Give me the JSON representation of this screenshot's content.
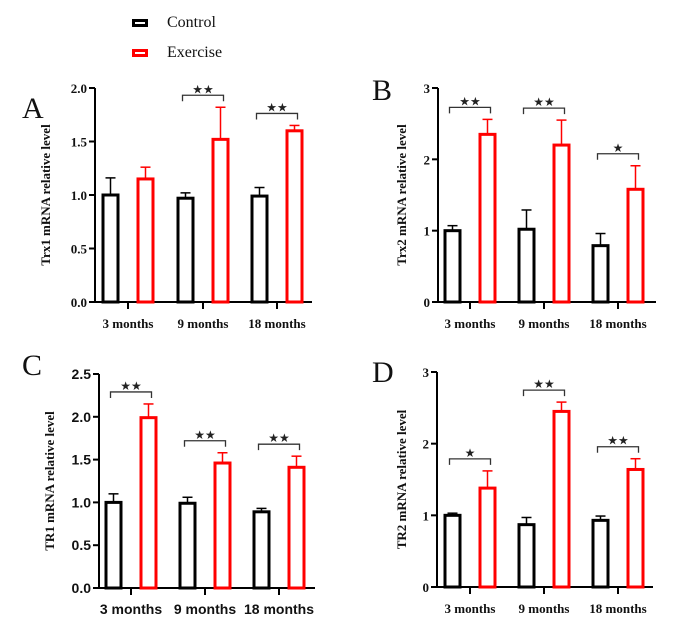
{
  "legend": {
    "items": [
      {
        "label": "Control",
        "color": "#000000"
      },
      {
        "label": "Exercise",
        "color": "#ff0000"
      }
    ]
  },
  "colors": {
    "control": "#000000",
    "exercise": "#ff0000",
    "bracket": "#333333"
  },
  "chart_data": [
    {
      "type": "bar",
      "panel": "A",
      "ylabel": "Trx1 mRNA relative level",
      "xlabel": "",
      "categories": [
        "3 months",
        "9 months",
        "18 months"
      ],
      "ylim": [
        0,
        2.0
      ],
      "yticks": [
        0.0,
        0.5,
        1.0,
        1.5,
        2.0
      ],
      "ytick_labels": [
        "0.0",
        "0.5",
        "1.0",
        "1.5",
        "2.0"
      ],
      "tick_font": "serif",
      "series": [
        {
          "name": "Control",
          "values": [
            1.0,
            0.97,
            0.99
          ],
          "error_upper": [
            1.16,
            1.02,
            1.07
          ]
        },
        {
          "name": "Exercise",
          "values": [
            1.15,
            1.52,
            1.6
          ],
          "error_upper": [
            1.26,
            1.82,
            1.65
          ]
        }
      ],
      "significance": [
        "",
        "**",
        "**"
      ],
      "grid": false
    },
    {
      "type": "bar",
      "panel": "B",
      "ylabel": "Trx2 mRNA relative level",
      "xlabel": "",
      "categories": [
        "3 months",
        "9 months",
        "18 months"
      ],
      "ylim": [
        0,
        3
      ],
      "yticks": [
        0,
        1,
        2,
        3
      ],
      "ytick_labels": [
        "0",
        "1",
        "2",
        "3"
      ],
      "tick_font": "serif",
      "series": [
        {
          "name": "Control",
          "values": [
            1.0,
            1.02,
            0.79
          ],
          "error_upper": [
            1.07,
            1.29,
            0.96
          ]
        },
        {
          "name": "Exercise",
          "values": [
            2.35,
            2.2,
            1.58
          ],
          "error_upper": [
            2.56,
            2.55,
            1.91
          ]
        }
      ],
      "significance": [
        "**",
        "**",
        "*"
      ],
      "grid": false
    },
    {
      "type": "bar",
      "panel": "C",
      "ylabel": "TR1 mRNA relative level",
      "xlabel": "",
      "categories": [
        "3 months",
        "9 months",
        "18 months"
      ],
      "ylim": [
        0,
        2.5
      ],
      "yticks": [
        0.0,
        0.5,
        1.0,
        1.5,
        2.0,
        2.5
      ],
      "ytick_labels": [
        "0.0",
        "0.5",
        "1.0",
        "1.5",
        "2.0",
        "2.5"
      ],
      "tick_font": "sans",
      "series": [
        {
          "name": "Control",
          "values": [
            1.0,
            0.99,
            0.89
          ],
          "error_upper": [
            1.1,
            1.06,
            0.93
          ]
        },
        {
          "name": "Exercise",
          "values": [
            1.99,
            1.46,
            1.41
          ],
          "error_upper": [
            2.15,
            1.58,
            1.54
          ]
        }
      ],
      "significance": [
        "**",
        "**",
        "**"
      ],
      "grid": false
    },
    {
      "type": "bar",
      "panel": "D",
      "ylabel": "TR2 mRNA relative level",
      "xlabel": "",
      "categories": [
        "3 months",
        "9 months",
        "18 months"
      ],
      "ylim": [
        0,
        3
      ],
      "yticks": [
        0,
        1,
        2,
        3
      ],
      "ytick_labels": [
        "0",
        "1",
        "2",
        "3"
      ],
      "tick_font": "serif",
      "series": [
        {
          "name": "Control",
          "values": [
            1.0,
            0.87,
            0.93
          ],
          "error_upper": [
            1.03,
            0.97,
            0.99
          ]
        },
        {
          "name": "Exercise",
          "values": [
            1.38,
            2.45,
            1.64
          ],
          "error_upper": [
            1.62,
            2.58,
            1.79
          ]
        }
      ],
      "significance": [
        "*",
        "**",
        "**"
      ],
      "grid": false
    }
  ]
}
